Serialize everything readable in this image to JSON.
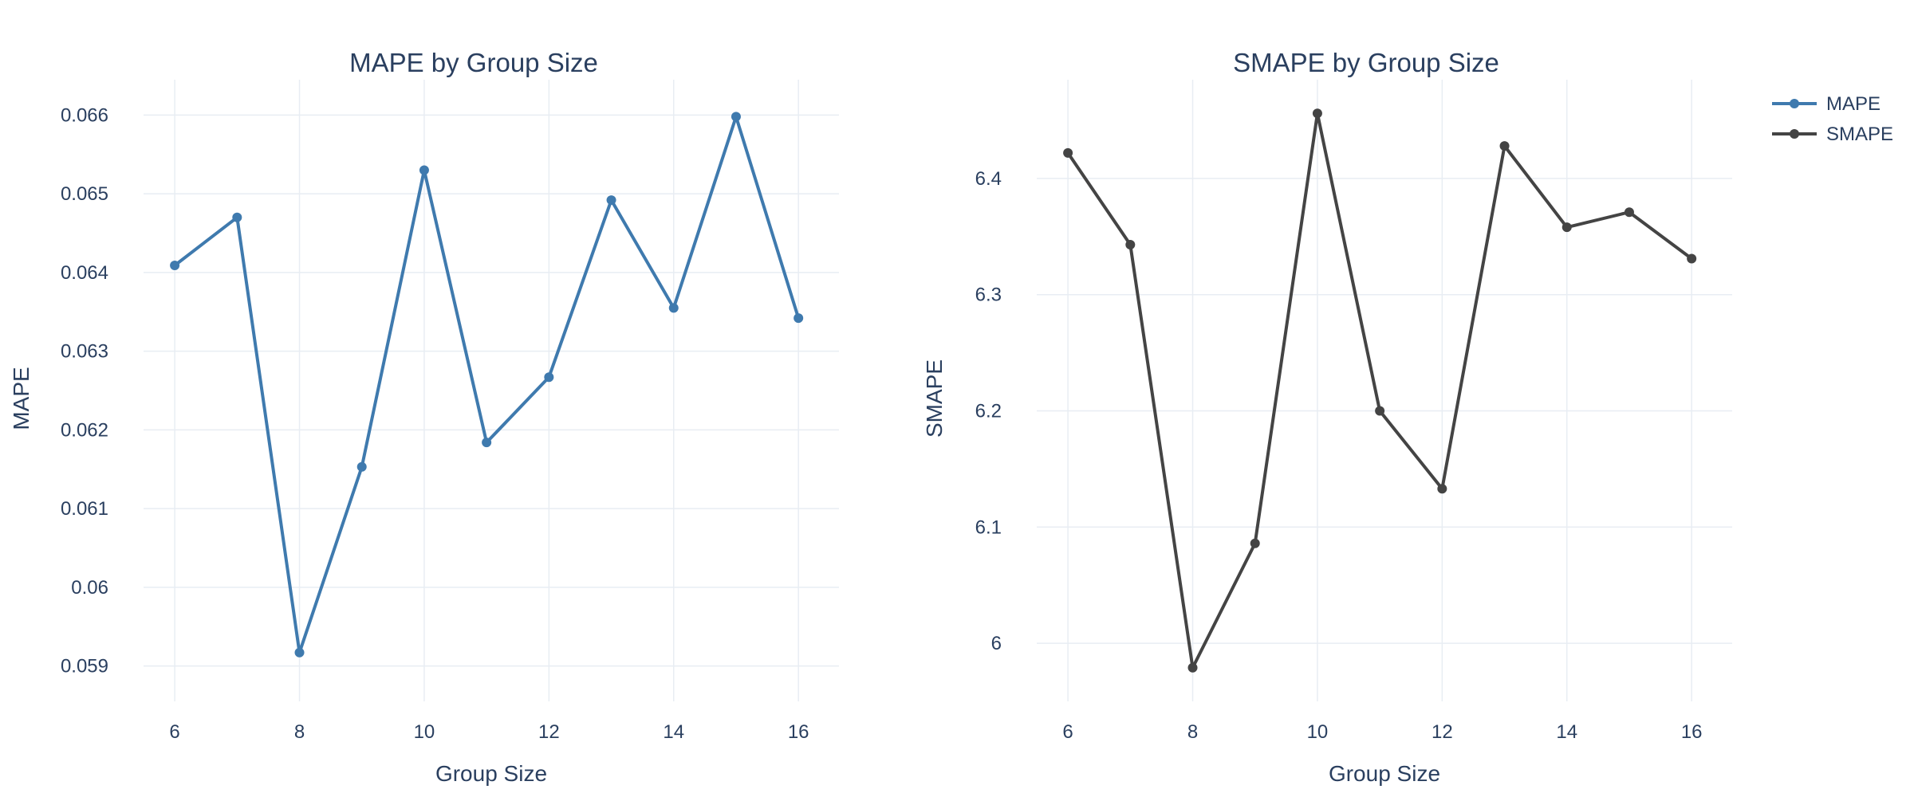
{
  "colors": {
    "mape": "#3f7aae",
    "smape": "#444444",
    "grid": "#e8edf3",
    "text": "#2a3f5f"
  },
  "legend": {
    "placement": "top-right",
    "items": [
      {
        "label": "MAPE",
        "color": "#3f7aae"
      },
      {
        "label": "SMAPE",
        "color": "#444444"
      }
    ]
  },
  "chart_data": [
    {
      "type": "line",
      "title": "MAPE by Group Size",
      "xlabel": "Group Size",
      "ylabel": "MAPE",
      "xlim": [
        5.5,
        16.65
      ],
      "ylim": [
        0.05855,
        0.06645
      ],
      "xticks": [
        6,
        8,
        10,
        12,
        14,
        16
      ],
      "yticks": [
        0.059,
        0.06,
        0.061,
        0.062,
        0.063,
        0.064,
        0.065,
        0.066
      ],
      "ytick_labels": [
        "0.059",
        "0.06",
        "0.061",
        "0.062",
        "0.063",
        "0.064",
        "0.065",
        "0.066"
      ],
      "grid": true,
      "series": [
        {
          "name": "MAPE",
          "color": "#3f7aae",
          "x": [
            6,
            7,
            8,
            9,
            10,
            11,
            12,
            13,
            14,
            15,
            16
          ],
          "y": [
            0.06409,
            0.0647,
            0.05917,
            0.06153,
            0.0653,
            0.06184,
            0.06267,
            0.06492,
            0.06355,
            0.06598,
            0.06342
          ]
        }
      ]
    },
    {
      "type": "line",
      "title": "SMAPE by Group Size",
      "xlabel": "Group Size",
      "ylabel": "SMAPE",
      "xlim": [
        5.5,
        16.65
      ],
      "ylim": [
        5.95,
        6.485
      ],
      "xticks": [
        6,
        8,
        10,
        12,
        14,
        16
      ],
      "yticks": [
        6.0,
        6.1,
        6.2,
        6.3,
        6.4
      ],
      "ytick_labels": [
        "6",
        "6.1",
        "6.2",
        "6.3",
        "6.4"
      ],
      "grid": true,
      "series": [
        {
          "name": "SMAPE",
          "color": "#444444",
          "x": [
            6,
            7,
            8,
            9,
            10,
            11,
            12,
            13,
            14,
            15,
            16
          ],
          "y": [
            6.422,
            6.343,
            5.979,
            6.086,
            6.456,
            6.2,
            6.133,
            6.428,
            6.358,
            6.371,
            6.331
          ]
        }
      ]
    }
  ]
}
